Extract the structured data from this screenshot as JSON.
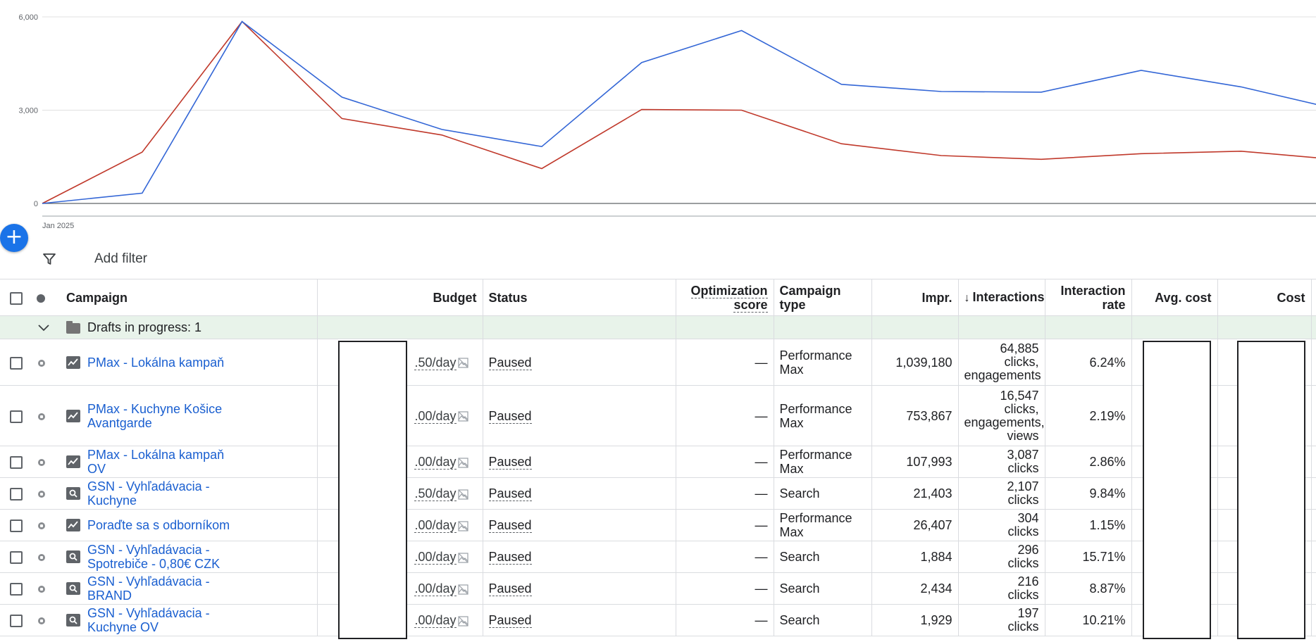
{
  "chart_data": {
    "type": "line",
    "xlabel": "Jan 2025",
    "y_ticks": [
      "6,000",
      "3,000",
      "0"
    ],
    "ylim": [
      0,
      6000
    ],
    "series": [
      {
        "values": [
          0,
          330,
          5850,
          3420,
          2380,
          1830,
          4530,
          5560,
          3830,
          3600,
          3580,
          4280,
          3750,
          3000
        ]
      },
      {
        "values": [
          0,
          1650,
          5850,
          2730,
          2200,
          1120,
          3020,
          3000,
          1920,
          1540,
          1420,
          1600,
          1680,
          1400
        ]
      }
    ],
    "colors": [
      "#3366d6",
      "#c0392b"
    ],
    "grid": true
  },
  "fab_label": "+",
  "filter": {
    "add_filter_label": "Add filter"
  },
  "table": {
    "headers": {
      "campaign": "Campaign",
      "budget": "Budget",
      "status": "Status",
      "opt_score_1": "Optimization",
      "opt_score_2": "score",
      "campaign_type": "Campaign type",
      "impr": "Impr.",
      "interactions": "Interactions",
      "interaction_rate_1": "Interaction",
      "interaction_rate_2": "rate",
      "avg_cost": "Avg. cost",
      "cost": "Cost"
    },
    "drafts_label": "Drafts in progress: 1",
    "rows": [
      {
        "name": "PMax - Lokálna kampaň",
        "budget": ".50/day",
        "status": "Paused",
        "opt": "—",
        "type": "Performance Max",
        "impr": "1,039,180",
        "int1": "64,885",
        "int2": "clicks,",
        "int3": "engagements",
        "int4": "",
        "rate": "6.24%"
      },
      {
        "name": "PMax - Kuchyne Košice Avantgarde",
        "budget": ".00/day",
        "status": "Paused",
        "opt": "—",
        "type": "Performance Max",
        "impr": "753,867",
        "int1": "16,547",
        "int2": "clicks,",
        "int3": "engagements,",
        "int4": "views",
        "rate": "2.19%"
      },
      {
        "name": "PMax - Lokálna kampaň OV",
        "budget": ".00/day",
        "status": "Paused",
        "opt": "—",
        "type": "Performance Max",
        "impr": "107,993",
        "int1": "3,087",
        "int2": "clicks",
        "int3": "",
        "int4": "",
        "rate": "2.86%"
      },
      {
        "name": "GSN - Vyhľadávacia - Kuchyne",
        "budget": ".50/day",
        "status": "Paused",
        "opt": "—",
        "type": "Search",
        "impr": "21,403",
        "int1": "2,107",
        "int2": "clicks",
        "int3": "",
        "int4": "",
        "rate": "9.84%"
      },
      {
        "name": "Poraďte sa s odborníkom",
        "budget": ".00/day",
        "status": "Paused",
        "opt": "—",
        "type": "Performance Max",
        "impr": "26,407",
        "int1": "304",
        "int2": "clicks",
        "int3": "",
        "int4": "",
        "rate": "1.15%"
      },
      {
        "name": "GSN - Vyhľadávacia - Spotrebiče - 0,80€ CZK",
        "budget": ".00/day",
        "status": "Paused",
        "opt": "—",
        "type": "Search",
        "impr": "1,884",
        "int1": "296",
        "int2": "clicks",
        "int3": "",
        "int4": "",
        "rate": "15.71%"
      },
      {
        "name": "GSN - Vyhľadávacia - BRAND",
        "budget": ".00/day",
        "status": "Paused",
        "opt": "—",
        "type": "Search",
        "impr": "2,434",
        "int1": "216",
        "int2": "clicks",
        "int3": "",
        "int4": "",
        "rate": "8.87%"
      },
      {
        "name": "GSN - Vyhľadávacia - Kuchyne OV",
        "budget": ".00/day",
        "status": "Paused",
        "opt": "—",
        "type": "Search",
        "impr": "1,929",
        "int1": "197",
        "int2": "clicks",
        "int3": "",
        "int4": "",
        "rate": "10.21%"
      }
    ]
  }
}
